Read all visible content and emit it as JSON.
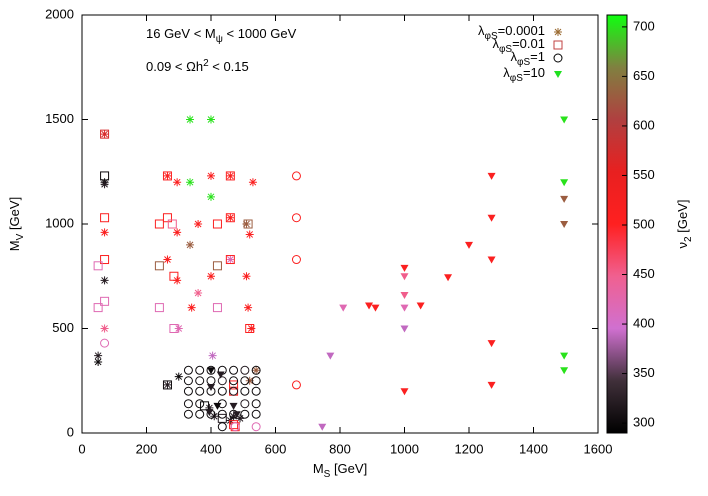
{
  "chart_data": {
    "type": "scatter",
    "xlabel": "MS [GeV]",
    "ylabel": "MV [GeV]",
    "annotations": [
      "16 GeV < Mψ < 1000 GeV",
      "0.09 < Ωh2 < 0.15"
    ],
    "xlim": [
      0,
      1600
    ],
    "xticks": [
      0,
      200,
      400,
      600,
      800,
      1000,
      1200,
      1400,
      1600
    ],
    "ylim": [
      0,
      2000
    ],
    "yticks": [
      0,
      500,
      1000,
      1500,
      2000
    ],
    "colorbar": {
      "label": "ν2 [GeV]",
      "lim": [
        290,
        712
      ],
      "ticks": [
        300,
        350,
        400,
        450,
        500,
        550,
        600,
        650,
        700
      ],
      "colormap": [
        "#000000",
        "#40303a",
        "#d070d0",
        "#f06090",
        "#ff2020",
        "#e82020",
        "#b04040",
        "#808040",
        "#10ff10"
      ]
    },
    "legend": "top-right",
    "series": [
      {
        "name": "λφS=0.0001",
        "marker": "asterisk",
        "color": "#9a6a30",
        "x": [
          70,
          70,
          70,
          70,
          70,
          70,
          50,
          50,
          265,
          265,
          300,
          295,
          295,
          295,
          300,
          265,
          335,
          335,
          335,
          340,
          360,
          360,
          400,
          400,
          400,
          400,
          405,
          460,
          460,
          460,
          510,
          520,
          510,
          525,
          530,
          515,
          395,
          410,
          470,
          490,
          520,
          540,
          460
        ],
        "y": [
          1430,
          1200,
          1190,
          960,
          730,
          500,
          370,
          340,
          1230,
          830,
          270,
          1200,
          960,
          730,
          500,
          230,
          1500,
          1200,
          900,
          600,
          1000,
          670,
          1500,
          1230,
          1130,
          750,
          370,
          1230,
          1030,
          830,
          1000,
          950,
          750,
          500,
          1200,
          600,
          120,
          80,
          80,
          70,
          250,
          300,
          60
        ],
        "z": [
          570,
          300,
          320,
          510,
          320,
          450,
          320,
          300,
          510,
          510,
          300,
          510,
          510,
          510,
          420,
          320,
          700,
          700,
          630,
          510,
          510,
          450,
          700,
          510,
          700,
          510,
          390,
          510,
          510,
          420,
          630,
          510,
          510,
          510,
          510,
          510,
          320,
          320,
          320,
          320,
          630,
          630,
          320
        ]
      },
      {
        "name": "λφS=0.01",
        "marker": "square",
        "color": "#c04040",
        "x": [
          70,
          70,
          70,
          70,
          70,
          50,
          50,
          240,
          240,
          240,
          265,
          265,
          280,
          285,
          285,
          420,
          420,
          420,
          460,
          460,
          460,
          515,
          520,
          265,
          470,
          470,
          380,
          470,
          475,
          435
        ],
        "y": [
          1430,
          1230,
          1030,
          830,
          630,
          800,
          600,
          1000,
          800,
          600,
          1230,
          1030,
          1000,
          750,
          500,
          1000,
          800,
          600,
          1230,
          1030,
          830,
          1000,
          500,
          230,
          230,
          200,
          130,
          40,
          30,
          70
        ],
        "z": [
          570,
          300,
          510,
          510,
          420,
          420,
          420,
          510,
          630,
          420,
          510,
          510,
          450,
          510,
          420,
          510,
          630,
          420,
          510,
          510,
          510,
          630,
          510,
          300,
          510,
          510,
          300,
          510,
          510,
          320
        ]
      },
      {
        "name": "λφS=1",
        "marker": "circle",
        "color": "#000000",
        "x": [
          70,
          665,
          665,
          665,
          665,
          330,
          365,
          400,
          435,
          470,
          505,
          540,
          330,
          365,
          400,
          435,
          470,
          505,
          540,
          330,
          365,
          400,
          435,
          470,
          505,
          540,
          330,
          365,
          435,
          505,
          540,
          330,
          365,
          400,
          435,
          470,
          505,
          540,
          475,
          435,
          540
        ],
        "y": [
          430,
          1230,
          1030,
          830,
          230,
          300,
          300,
          300,
          300,
          300,
          300,
          300,
          250,
          250,
          250,
          250,
          250,
          250,
          250,
          200,
          200,
          200,
          200,
          200,
          200,
          200,
          140,
          140,
          140,
          140,
          140,
          90,
          90,
          90,
          90,
          90,
          90,
          90,
          30,
          30,
          30
        ],
        "z": [
          420,
          510,
          510,
          510,
          510,
          300,
          300,
          300,
          300,
          300,
          320,
          300,
          300,
          300,
          300,
          320,
          300,
          300,
          300,
          300,
          300,
          300,
          300,
          320,
          300,
          300,
          300,
          300,
          300,
          320,
          300,
          300,
          300,
          300,
          300,
          300,
          300,
          300,
          420,
          300,
          420
        ]
      },
      {
        "name": "λφS=10",
        "marker": "triangle",
        "color": "#20e020",
        "x": [
          770,
          745,
          810,
          890,
          910,
          1000,
          1000,
          1000,
          1000,
          1000,
          1000,
          1050,
          1135,
          1200,
          1270,
          1270,
          1270,
          1270,
          1270,
          1495,
          1495,
          1495,
          1495,
          1495,
          1495,
          400,
          430,
          400,
          420,
          470,
          480,
          395
        ],
        "y": [
          370,
          30,
          600,
          610,
          600,
          790,
          750,
          660,
          600,
          500,
          200,
          610,
          745,
          900,
          1230,
          1030,
          830,
          430,
          230,
          1500,
          1200,
          1120,
          1000,
          370,
          300,
          300,
          280,
          220,
          130,
          130,
          90,
          100
        ],
        "z": [
          390,
          390,
          420,
          510,
          510,
          510,
          450,
          450,
          420,
          390,
          510,
          510,
          510,
          510,
          510,
          510,
          510,
          510,
          510,
          700,
          700,
          630,
          630,
          700,
          700,
          300,
          320,
          320,
          300,
          320,
          320,
          320
        ]
      }
    ]
  }
}
